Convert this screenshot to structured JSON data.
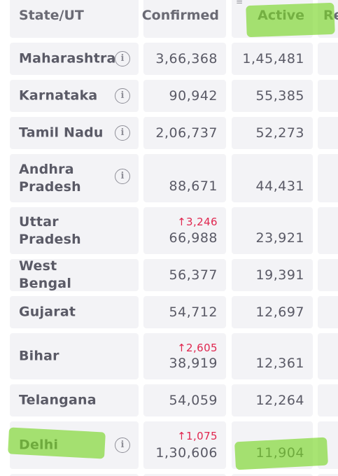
{
  "header": {
    "state": "State/UT",
    "confirmed": "Confirmed",
    "active": "Active",
    "recovered_partial": "Re",
    "sort_icon": "sort-icon"
  },
  "rows": [
    {
      "state": "Maharashtra",
      "confirmed": "3,66,368",
      "delta": "",
      "active": "1,45,481"
    },
    {
      "state": "Karnataka",
      "confirmed": "90,942",
      "delta": "",
      "active": "55,385"
    },
    {
      "state": "Tamil Nadu",
      "confirmed": "2,06,737",
      "delta": "",
      "active": "52,273"
    },
    {
      "state": "Andhra Pradesh",
      "confirmed": "88,671",
      "delta": "",
      "active": "44,431"
    },
    {
      "state": "Uttar Pradesh",
      "confirmed": "66,988",
      "delta": "↑3,246",
      "active": "23,921"
    },
    {
      "state": "West Bengal",
      "confirmed": "56,377",
      "delta": "",
      "active": "19,391"
    },
    {
      "state": "Gujarat",
      "confirmed": "54,712",
      "delta": "",
      "active": "12,697"
    },
    {
      "state": "Bihar",
      "confirmed": "38,919",
      "delta": "↑2,605",
      "active": "12,361"
    },
    {
      "state": "Telangana",
      "confirmed": "54,059",
      "delta": "",
      "active": "12,264"
    },
    {
      "state": "Delhi",
      "confirmed": "1,30,606",
      "delta": "↑1,075",
      "active": "11,904"
    }
  ],
  "colors": {
    "cell_bg": "#f3f3f6",
    "text": "#5a5a66",
    "delta_red": "#e0264f",
    "highlighter_green": "#7ad628"
  }
}
